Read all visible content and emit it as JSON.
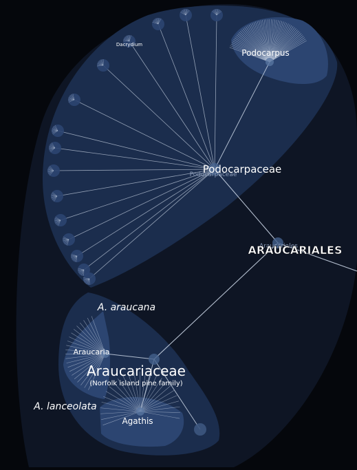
{
  "colors": {
    "background": "#05070c",
    "outer_region": "#0e1524",
    "family_region": "#1b2d4d",
    "genus_region": "#2c4571",
    "branch_line": "#c9d4e4",
    "label_text": "#ffffff",
    "ghost_text": "#8a9bb8"
  },
  "labels": {
    "order_title": "ARAUCARIALES",
    "order_ghost": "Araucariales",
    "podocarpaceae_title": "Podocarpaceae",
    "podocarpaceae_ghost": "Podocarpaceae",
    "podocarpus": "Podocarpus",
    "dacrydium": "Dacrydium",
    "araucariaceae_title": "Araucariaceae",
    "araucariaceae_common": "(Norfolk island pine family)",
    "araucaria": "Araucaria",
    "agathis": "Agathis",
    "a_araucana": "A. araucana",
    "a_lanceolata": "A. lanceolata"
  }
}
